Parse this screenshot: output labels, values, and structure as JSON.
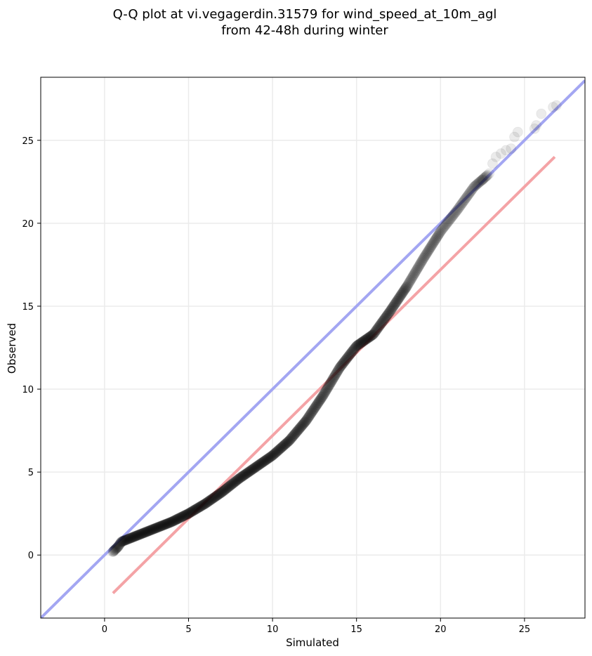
{
  "chart_data": {
    "type": "scatter",
    "title_line1": "Q-Q plot at vi.vegagerdin.31579 for wind_speed_at_10m_agl",
    "title_line2": "from 42-48h during winter",
    "xlabel": "Simulated",
    "ylabel": "Observed",
    "xlim": [
      -3.8,
      28.6
    ],
    "ylim": [
      -3.8,
      28.8
    ],
    "xticks": [
      0,
      5,
      10,
      15,
      20,
      25
    ],
    "yticks": [
      0,
      5,
      10,
      15,
      20,
      25
    ],
    "grid": true,
    "colors": {
      "points": "#000000",
      "identity_line": "#a3a6f2",
      "fit_line": "#f4a3a6",
      "grid": "#ebebeb"
    },
    "identity_line": {
      "x": [
        -3.8,
        28.6
      ],
      "y": [
        -3.8,
        28.6
      ]
    },
    "fit_line": {
      "x": [
        0.5,
        26.8
      ],
      "y": [
        -2.3,
        24.0
      ]
    },
    "quantile_curve": {
      "x": [
        0.5,
        0.8,
        1.0,
        1.5,
        2.0,
        3.0,
        4.0,
        5.0,
        6.0,
        7.0,
        8.0,
        9.0,
        10.0,
        11.0,
        12.0,
        13.0,
        14.0,
        15.0,
        16.0,
        17.0,
        18.0,
        19.0,
        20.0,
        21.0,
        22.0,
        22.8
      ],
      "y": [
        0.2,
        0.5,
        0.8,
        1.0,
        1.2,
        1.6,
        2.0,
        2.5,
        3.1,
        3.8,
        4.6,
        5.3,
        6.0,
        6.9,
        8.1,
        9.6,
        11.3,
        12.6,
        13.3,
        14.7,
        16.2,
        17.9,
        19.5,
        20.8,
        22.2,
        22.9
      ]
    },
    "sample_count": 520,
    "tail_points": [
      {
        "x": 22.5,
        "y": 22.6
      },
      {
        "x": 22.9,
        "y": 23.0
      },
      {
        "x": 23.1,
        "y": 23.6
      },
      {
        "x": 23.3,
        "y": 24.0
      },
      {
        "x": 23.6,
        "y": 24.2
      },
      {
        "x": 23.9,
        "y": 24.4
      },
      {
        "x": 24.2,
        "y": 24.5
      },
      {
        "x": 24.4,
        "y": 25.2
      },
      {
        "x": 24.6,
        "y": 25.5
      },
      {
        "x": 25.6,
        "y": 25.7
      },
      {
        "x": 25.7,
        "y": 25.9
      },
      {
        "x": 26.0,
        "y": 26.6
      },
      {
        "x": 26.7,
        "y": 27.0
      },
      {
        "x": 26.9,
        "y": 27.1
      }
    ]
  }
}
